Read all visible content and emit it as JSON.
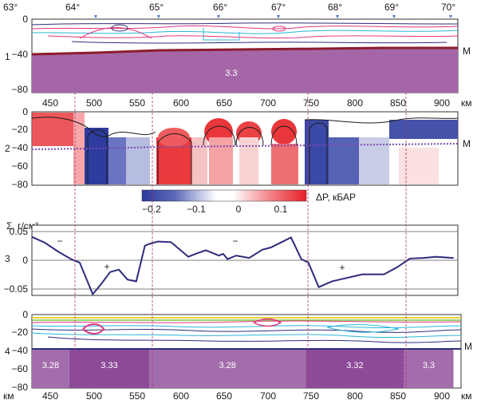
{
  "panel1": {
    "index": "1",
    "longitudes": [
      "63°",
      "64°",
      "65°",
      "66°",
      "67°",
      "68°",
      "69°",
      "70°"
    ],
    "depth_ticks": [
      "0",
      "−40",
      "−80"
    ],
    "moho_label": "M",
    "density": "3.3",
    "colors": {
      "mantle": "#a566a8",
      "moho": "#8b1d2c",
      "pink": "#e0357e",
      "cyan": "#2bb7d6",
      "navy": "#2a2f7a"
    }
  },
  "distance_axis": {
    "ticks": [
      "450",
      "500",
      "550",
      "600",
      "650",
      "700",
      "750",
      "800",
      "850",
      "900"
    ],
    "unit": "км"
  },
  "panel2": {
    "index": "2",
    "depth_ticks": [
      "0",
      "−20",
      "−40",
      "−60",
      "−80"
    ],
    "moho_label": "M",
    "colorbar": {
      "label": "ΔP, кБАР",
      "ticks": [
        "−0.2",
        "−0.1",
        "0",
        "0.1"
      ],
      "min_color": "#2b3a9c",
      "max_color": "#e8202a"
    }
  },
  "panel3": {
    "index": "3",
    "ylabel": "Σ, г/см³",
    "yticks": [
      "0.05",
      "0",
      "−0.05"
    ],
    "ylim": [
      -0.06,
      0.06
    ],
    "signs": [
      "−",
      "+",
      "−",
      "+"
    ],
    "line_color": "#2d2a7c",
    "series": {
      "x": [
        430,
        445,
        460,
        475,
        485,
        500,
        510,
        520,
        530,
        540,
        550,
        560,
        565,
        575,
        590,
        610,
        620,
        630,
        645,
        650,
        655,
        665,
        680,
        695,
        705,
        720,
        728,
        740,
        748,
        760,
        775,
        790,
        810,
        835,
        850,
        865,
        880,
        895,
        915
      ],
      "y": [
        0.04,
        0.03,
        0.015,
        0.002,
        -0.004,
        -0.058,
        -0.04,
        -0.02,
        -0.016,
        -0.033,
        -0.036,
        0.025,
        0.028,
        0.032,
        0.031,
        0.006,
        0.012,
        0.017,
        0.008,
        0.011,
        0.002,
        0.008,
        0.004,
        0.018,
        0.022,
        0.033,
        0.039,
        0.002,
        -0.004,
        -0.046,
        -0.036,
        -0.031,
        -0.024,
        -0.024,
        -0.012,
        0.003,
        0.004,
        0.006,
        0.004
      ]
    }
  },
  "panel4": {
    "index": "4",
    "depth_ticks": [
      "0",
      "−20",
      "−40",
      "−60",
      "−80"
    ],
    "moho_label": "M",
    "blocks": [
      {
        "label": "3.28",
        "from": 430,
        "to": 473,
        "color": "#a36dab"
      },
      {
        "label": "3.33",
        "from": 473,
        "to": 565,
        "color": "#8c4a99"
      },
      {
        "label": "3.28",
        "from": 565,
        "to": 745,
        "color": "#a36dab"
      },
      {
        "label": "3.32",
        "from": 745,
        "to": 858,
        "color": "#8c4a99"
      },
      {
        "label": "3.3",
        "from": 858,
        "to": 915,
        "color": "#a36dab"
      }
    ],
    "axis_ticks": [
      "450",
      "500",
      "550",
      "600",
      "650",
      "700",
      "750",
      "800",
      "850",
      "900"
    ],
    "unit_left": "км",
    "unit_right": "км"
  }
}
